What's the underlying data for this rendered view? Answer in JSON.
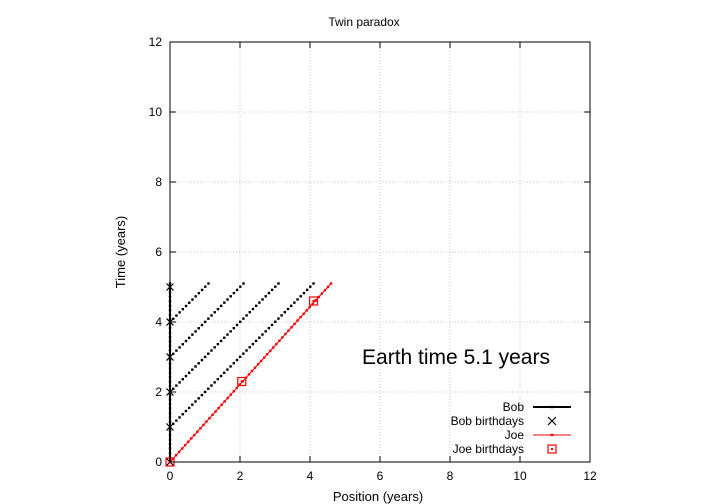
{
  "chart_data": {
    "type": "scatter",
    "title": "Twin paradox",
    "xlabel": "Position (years)",
    "ylabel": "Time (years)",
    "xlim": [
      0,
      12
    ],
    "ylim": [
      0,
      12
    ],
    "xticks": [
      0,
      2,
      4,
      6,
      8,
      10,
      12
    ],
    "yticks": [
      0,
      2,
      4,
      6,
      8,
      10,
      12
    ],
    "grid": true,
    "legend_position": "bottom-right",
    "annotation": "Earth time  5.1 years",
    "series": [
      {
        "name": "Bob",
        "style": "line-dots",
        "color": "#000000",
        "segments": [
          {
            "x": [
              0,
              0
            ],
            "y": [
              0,
              5.1
            ]
          },
          {
            "x": [
              0,
              4.1
            ],
            "y": [
              1,
              5.1
            ]
          },
          {
            "x": [
              0,
              3.1
            ],
            "y": [
              2,
              5.1
            ]
          },
          {
            "x": [
              0,
              2.1
            ],
            "y": [
              3,
              5.1
            ]
          },
          {
            "x": [
              0,
              1.1
            ],
            "y": [
              4,
              5.1
            ]
          }
        ]
      },
      {
        "name": "Bob birthdays",
        "style": "cross",
        "color": "#000000",
        "x": [
          0,
          0,
          0,
          0,
          0,
          0
        ],
        "y": [
          0,
          1,
          2,
          3,
          4,
          5
        ]
      },
      {
        "name": "Joe",
        "style": "line-dots",
        "color": "#ff0000",
        "segments": [
          {
            "x": [
              0,
              4.6
            ],
            "y": [
              0,
              5.1
            ]
          }
        ]
      },
      {
        "name": "Joe birthdays",
        "style": "square",
        "color": "#ff0000",
        "x": [
          0,
          2.05,
          4.1
        ],
        "y": [
          0,
          2.3,
          4.6
        ]
      }
    ]
  }
}
